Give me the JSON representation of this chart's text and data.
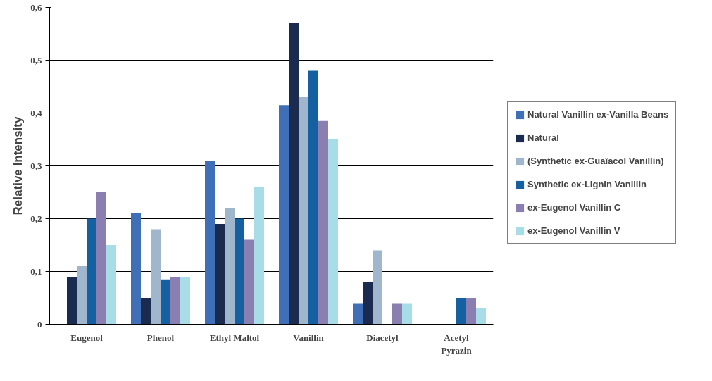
{
  "chart_data": {
    "type": "bar",
    "ylabel": "Relative Intensity",
    "categories": [
      "Eugenol",
      "Phenol",
      "Ethyl Maltol",
      "Vanillin",
      "Diacetyl",
      "Acetyl Pyrazin"
    ],
    "series": [
      {
        "name": "Natural Vanillin ex-Vanilla Beans",
        "color": "#3f6fb6",
        "values": [
          0,
          0.21,
          0.31,
          0.415,
          0.04,
          0
        ]
      },
      {
        "name": "Natural",
        "color": "#1b2a4f",
        "values": [
          0.09,
          0.05,
          0.19,
          0.57,
          0.08,
          0
        ]
      },
      {
        "name": "(Synthetic ex-Guaïacol Vanillin)",
        "color": "#9fb6cc",
        "values": [
          0.11,
          0.18,
          0.22,
          0.43,
          0.14,
          0
        ]
      },
      {
        "name": "Synthetic ex-Lignin Vanillin",
        "color": "#1560a0",
        "values": [
          0.2,
          0.085,
          0.2,
          0.48,
          0,
          0.05
        ]
      },
      {
        "name": "ex-Eugenol Vanillin C",
        "color": "#8a7fb0",
        "values": [
          0.25,
          0.09,
          0.16,
          0.385,
          0.04,
          0.05
        ]
      },
      {
        "name": "ex-Eugenol Vanillin V",
        "color": "#a8dce6",
        "values": [
          0.15,
          0.09,
          0.26,
          0.35,
          0.04,
          0.03
        ]
      }
    ],
    "ylim": [
      0,
      0.6
    ],
    "yticks": [
      {
        "value": 0,
        "label": "0"
      },
      {
        "value": 0.1,
        "label": "0,1"
      },
      {
        "value": 0.2,
        "label": "0,2"
      },
      {
        "value": 0.3,
        "label": "0,3"
      },
      {
        "value": 0.4,
        "label": "0,4"
      },
      {
        "value": 0.5,
        "label": "0,5"
      },
      {
        "value": 0.6,
        "label": "0,6"
      }
    ],
    "grid": "y",
    "legend": "right"
  }
}
